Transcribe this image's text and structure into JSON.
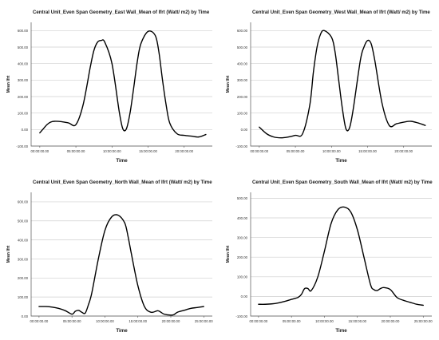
{
  "chart_data": [
    {
      "type": "line",
      "title": "Central Unit_Even Span Geometry_East Wall_Mean of Ifrt (Watt/ m2) by Time",
      "xlabel": "Time",
      "ylabel": "Mean Ifrt",
      "x_ticks": [
        "00:00:00.00",
        "05:00:00.00",
        "10:00:00.00",
        "15:00:00.00",
        "20:00:00.00"
      ],
      "x_ticks_hours": [
        0,
        5,
        10,
        15,
        20
      ],
      "y_ticks": [
        "-100.00",
        "0.00",
        "100.00",
        "200.00",
        "300.00",
        "400.00",
        "500.00",
        "600.00"
      ],
      "y_ticks_values": [
        -100,
        0,
        100,
        200,
        300,
        400,
        500,
        600
      ],
      "xlim": [
        -1.2,
        23.9
      ],
      "ylim": [
        -100,
        650
      ],
      "grid": "horizontal",
      "line_color": "#000000",
      "series": [
        {
          "x": [
            0,
            0.5,
            1,
            1.5,
            2,
            3,
            4,
            5,
            6,
            7,
            7.5,
            8,
            8.5,
            9,
            10,
            11,
            11.5,
            12,
            12.5,
            13,
            13.5,
            14,
            15,
            16,
            16.5,
            17,
            17.5,
            18,
            19,
            20,
            21,
            22,
            23
          ],
          "y": [
            -20,
            5,
            30,
            45,
            50,
            48,
            40,
            30,
            150,
            380,
            480,
            530,
            540,
            530,
            400,
            110,
            5,
            5,
            100,
            250,
            410,
            520,
            595,
            570,
            470,
            300,
            150,
            40,
            -25,
            -35,
            -40,
            -45,
            -30
          ]
        }
      ]
    },
    {
      "type": "line",
      "title": "Central Unit_Even Span Geometry_West Wall_Mean of Ifrt (Watt/ m2) by Time",
      "xlabel": "Time",
      "ylabel": "Mean Ifrt",
      "x_ticks": [
        "00:00:00.00",
        "05:00:00.00",
        "10:00:00.00",
        "15:00:00.00",
        "20:00:00.00"
      ],
      "x_ticks_hours": [
        0,
        5,
        10,
        15,
        20
      ],
      "y_ticks": [
        "-100.00",
        "0.00",
        "100.00",
        "200.00",
        "300.00",
        "400.00",
        "500.00",
        "600.00"
      ],
      "y_ticks_values": [
        -100,
        0,
        100,
        200,
        300,
        400,
        500,
        600
      ],
      "xlim": [
        -1.2,
        23.9
      ],
      "ylim": [
        -100,
        650
      ],
      "grid": "horizontal",
      "line_color": "#000000",
      "series": [
        {
          "x": [
            0,
            1,
            2,
            3,
            4,
            5,
            6,
            7,
            7.5,
            8,
            8.5,
            9,
            10,
            10.5,
            11,
            11.5,
            12,
            12.5,
            13,
            14,
            14.5,
            15,
            15.5,
            16,
            17,
            18,
            19,
            20,
            21,
            22,
            23
          ],
          "y": [
            15,
            -25,
            -45,
            -50,
            -45,
            -35,
            -25,
            150,
            350,
            500,
            580,
            600,
            560,
            470,
            300,
            130,
            5,
            10,
            120,
            420,
            500,
            540,
            520,
            420,
            160,
            25,
            35,
            45,
            50,
            40,
            25
          ]
        }
      ]
    },
    {
      "type": "line",
      "title": "Central Unit_Even Span Geometry_North Wall_Mean of Ifrt (Watt/ m2) by Time",
      "xlabel": "Time",
      "ylabel": "Mean Ifrt",
      "x_ticks": [
        "00:00:00.00",
        "05:00:00.00",
        "10:00:00.00",
        "15:00:00.00",
        "20:00:00.00",
        "25:00:00.00"
      ],
      "x_ticks_hours": [
        0,
        5,
        10,
        15,
        20,
        25
      ],
      "y_ticks": [
        "0.00",
        "100.00",
        "200.00",
        "300.00",
        "400.00",
        "500.00",
        "600.00"
      ],
      "y_ticks_values": [
        0,
        100,
        200,
        300,
        400,
        500,
        600
      ],
      "xlim": [
        -1.2,
        26.3
      ],
      "ylim": [
        0,
        650
      ],
      "grid": "horizontal",
      "line_color": "#000000",
      "series": [
        {
          "x": [
            0,
            1,
            2,
            3,
            4,
            5,
            5.5,
            6,
            6.5,
            7,
            7.5,
            8,
            9,
            10,
            11,
            12,
            13,
            13.5,
            14,
            15,
            16,
            17,
            18,
            18.5,
            19,
            20,
            20.5,
            21,
            22,
            23,
            24,
            25
          ],
          "y": [
            50,
            50,
            47,
            40,
            28,
            10,
            25,
            30,
            20,
            15,
            60,
            120,
            300,
            450,
            520,
            530,
            490,
            420,
            330,
            160,
            50,
            20,
            28,
            20,
            10,
            5,
            8,
            20,
            30,
            40,
            45,
            50
          ]
        }
      ]
    },
    {
      "type": "line",
      "title": "Central Unit_Even Span Geometry_South Wall_Mean of Ifrt (Watt/ m2) by Time",
      "xlabel": "Time",
      "ylabel": "Mean Ifrt",
      "x_ticks": [
        "00:00:00.00",
        "05:00:00.00",
        "10:00:00.00",
        "15:00:00.00",
        "20:00:00.00",
        "25:00:00.00"
      ],
      "x_ticks_hours": [
        0,
        5,
        10,
        15,
        20,
        25
      ],
      "y_ticks": [
        "-100.00",
        "0.00",
        "100.00",
        "200.00",
        "300.00",
        "400.00",
        "500.00"
      ],
      "y_ticks_values": [
        -100,
        0,
        100,
        200,
        300,
        400,
        500
      ],
      "xlim": [
        -1.2,
        26.3
      ],
      "ylim": [
        -100,
        530
      ],
      "grid": "horizontal",
      "line_color": "#000000",
      "series": [
        {
          "x": [
            0,
            1,
            2,
            3,
            4,
            5,
            6,
            6.5,
            7,
            7.5,
            8,
            9,
            10,
            11,
            12,
            13,
            14,
            15,
            16,
            17,
            17.5,
            18,
            18.5,
            19,
            20,
            21,
            22,
            23,
            24,
            25
          ],
          "y": [
            -40,
            -40,
            -38,
            -33,
            -25,
            -15,
            -5,
            10,
            40,
            40,
            30,
            100,
            230,
            370,
            440,
            455,
            430,
            340,
            200,
            60,
            35,
            30,
            40,
            45,
            35,
            -5,
            -20,
            -30,
            -40,
            -45
          ]
        }
      ]
    }
  ]
}
